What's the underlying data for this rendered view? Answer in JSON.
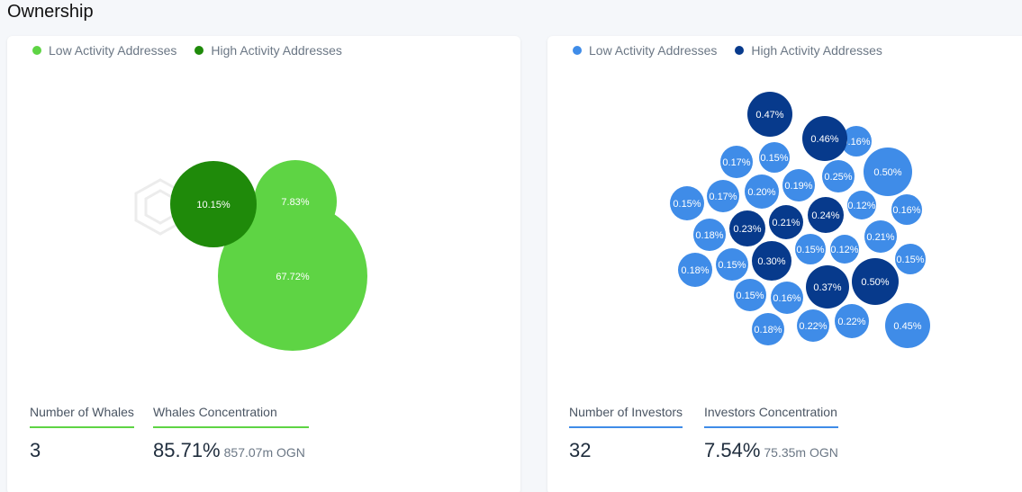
{
  "header": {
    "title": "Ownership"
  },
  "colors": {
    "light_green": "#5ed444",
    "dark_green": "#1f8a0a",
    "light_blue": "#3f8ce8",
    "dark_blue": "#073a8c"
  },
  "left_panel": {
    "legend": {
      "low": "Low Activity Addresses",
      "high": "High Activity Addresses"
    },
    "stats": {
      "count_label": "Number of Whales",
      "count_value": "3",
      "concentration_label": "Whales Concentration",
      "concentration_value": "85.71%",
      "concentration_sub": "857.07m OGN"
    }
  },
  "right_panel": {
    "legend": {
      "low": "Low Activity Addresses",
      "high": "High Activity Addresses"
    },
    "stats": {
      "count_label": "Number of Investors",
      "count_value": "32",
      "concentration_label": "Investors Concentration",
      "concentration_value": "7.54%",
      "concentration_sub": "75.35m OGN"
    }
  },
  "chart_data": [
    {
      "type": "bubble",
      "series": [
        {
          "name": "Low Activity Addresses",
          "values": [
            7.83,
            67.72
          ]
        },
        {
          "name": "High Activity Addresses",
          "values": [
            10.15
          ]
        }
      ],
      "labels": [
        "10.15%",
        "7.83%",
        "67.72%"
      ]
    },
    {
      "type": "bubble",
      "series": [
        {
          "name": "Low Activity Addresses",
          "values": [
            0.16,
            0.5,
            0.17,
            0.15,
            0.25,
            0.15,
            0.17,
            0.2,
            0.19,
            0.12,
            0.16,
            0.18,
            0.21,
            0.15,
            0.12,
            0.18,
            0.15,
            0.15,
            0.15,
            0.16,
            0.18,
            0.22,
            0.22,
            0.45
          ]
        },
        {
          "name": "High Activity Addresses",
          "values": [
            0.47,
            0.46,
            0.24,
            0.23,
            0.21,
            0.3,
            0.37,
            0.5
          ]
        }
      ]
    }
  ]
}
